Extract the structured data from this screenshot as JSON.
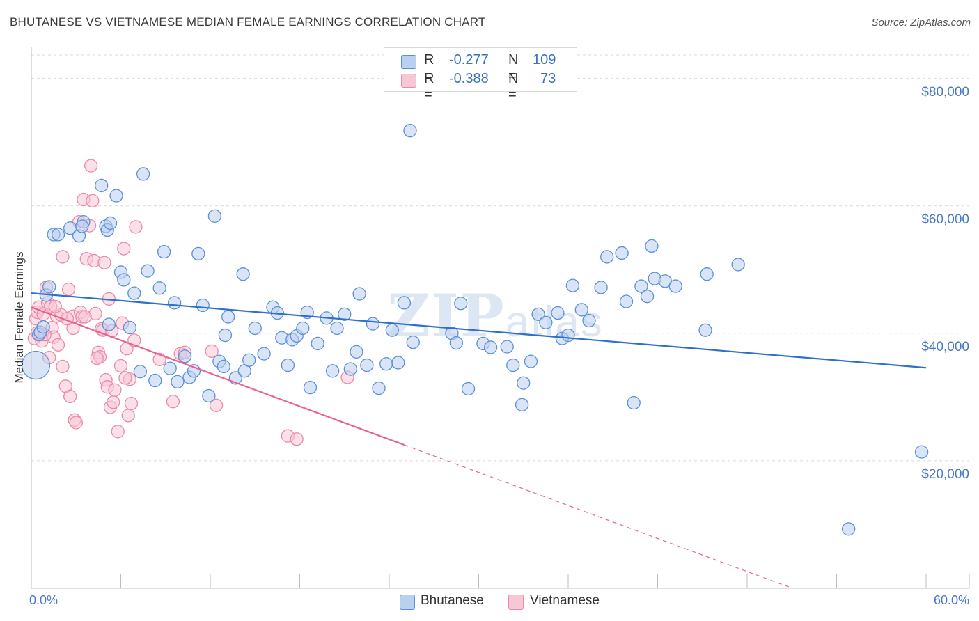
{
  "title": "BHUTANESE VS VIETNAMESE MEDIAN FEMALE EARNINGS CORRELATION CHART",
  "source": "Source: ZipAtlas.com",
  "watermark_zip": "ZIP",
  "watermark_atlas": "atlas",
  "colors": {
    "bhutanese_fill": "#b9d0f0",
    "bhutanese_stroke": "#5b8fd6",
    "bhutanese_line": "#2f6fce",
    "vietnamese_fill": "#f8c7d5",
    "vietnamese_stroke": "#e88aa8",
    "vietnamese_line": "#e8628e",
    "axis_text": "#4a78c8",
    "grid": "#d9d9d9"
  },
  "legend": {
    "row1": {
      "r_label": "R =",
      "r_value": "-0.277",
      "n_label": "N =",
      "n_value": "109"
    },
    "row2": {
      "r_label": "R =",
      "r_value": "-0.388",
      "n_label": "N =",
      "n_value": "73"
    }
  },
  "chart_data": {
    "type": "scatter",
    "title": "BHUTANESE VS VIETNAMESE MEDIAN FEMALE EARNINGS CORRELATION CHART",
    "xlabel": "",
    "ylabel": "Median Female Earnings",
    "xlim": [
      0,
      60
    ],
    "ylim": [
      0,
      84000
    ],
    "x_tick_labels": [
      "0.0%",
      "60.0%"
    ],
    "y_ticks": [
      20000,
      40000,
      60000,
      80000
    ],
    "y_tick_labels": [
      "$20,000",
      "$40,000",
      "$60,000",
      "$80,000"
    ],
    "grid": true,
    "legend_position": "bottom-center",
    "series": [
      {
        "name": "Bhutanese",
        "trend": {
          "x": [
            0,
            60
          ],
          "y": [
            46300,
            34600
          ]
        },
        "points": [
          [
            0.3,
            35000
          ],
          [
            0.5,
            39800
          ],
          [
            0.6,
            40200
          ],
          [
            0.8,
            41000
          ],
          [
            1.0,
            46000
          ],
          [
            1.2,
            47300
          ],
          [
            1.5,
            55500
          ],
          [
            1.8,
            55500
          ],
          [
            2.6,
            56500
          ],
          [
            3.2,
            55300
          ],
          [
            3.5,
            57500
          ],
          [
            3.4,
            56800
          ],
          [
            4.7,
            63200
          ],
          [
            5.0,
            56800
          ],
          [
            5.1,
            56200
          ],
          [
            5.3,
            57300
          ],
          [
            5.7,
            61600
          ],
          [
            5.2,
            41400
          ],
          [
            6.0,
            49600
          ],
          [
            6.2,
            48400
          ],
          [
            6.6,
            40900
          ],
          [
            6.9,
            46300
          ],
          [
            7.3,
            34000
          ],
          [
            7.5,
            65000
          ],
          [
            7.8,
            49800
          ],
          [
            8.3,
            32600
          ],
          [
            8.6,
            47100
          ],
          [
            8.9,
            52800
          ],
          [
            9.3,
            34500
          ],
          [
            9.6,
            44800
          ],
          [
            9.8,
            32400
          ],
          [
            10.3,
            36400
          ],
          [
            10.6,
            33100
          ],
          [
            10.9,
            34100
          ],
          [
            11.2,
            52500
          ],
          [
            11.5,
            44400
          ],
          [
            11.9,
            30200
          ],
          [
            12.3,
            58400
          ],
          [
            12.6,
            35600
          ],
          [
            12.9,
            34800
          ],
          [
            13.2,
            42600
          ],
          [
            13.7,
            33000
          ],
          [
            14.2,
            49300
          ],
          [
            14.3,
            34100
          ],
          [
            14.6,
            35800
          ],
          [
            15.0,
            40800
          ],
          [
            15.6,
            36800
          ],
          [
            16.2,
            44100
          ],
          [
            16.5,
            43200
          ],
          [
            16.8,
            39300
          ],
          [
            17.2,
            35000
          ],
          [
            17.5,
            39000
          ],
          [
            17.8,
            39600
          ],
          [
            18.2,
            40800
          ],
          [
            18.5,
            43300
          ],
          [
            18.7,
            31500
          ],
          [
            19.2,
            38400
          ],
          [
            19.8,
            42400
          ],
          [
            20.2,
            34100
          ],
          [
            20.5,
            40800
          ],
          [
            21.0,
            43000
          ],
          [
            21.4,
            34400
          ],
          [
            21.8,
            37100
          ],
          [
            22.0,
            46200
          ],
          [
            22.5,
            35000
          ],
          [
            22.9,
            41500
          ],
          [
            23.3,
            31400
          ],
          [
            23.8,
            35200
          ],
          [
            24.2,
            40500
          ],
          [
            24.6,
            35400
          ],
          [
            25.0,
            44800
          ],
          [
            25.6,
            38600
          ],
          [
            25.4,
            71800
          ],
          [
            28.2,
            40000
          ],
          [
            28.5,
            38500
          ],
          [
            28.8,
            44700
          ],
          [
            29.3,
            31300
          ],
          [
            30.3,
            38400
          ],
          [
            30.8,
            37800
          ],
          [
            31.9,
            37900
          ],
          [
            32.3,
            35000
          ],
          [
            32.9,
            28800
          ],
          [
            33.0,
            32200
          ],
          [
            33.5,
            35600
          ],
          [
            34.0,
            43000
          ],
          [
            34.5,
            41700
          ],
          [
            35.3,
            43200
          ],
          [
            35.6,
            39200
          ],
          [
            36.0,
            39700
          ],
          [
            36.3,
            47500
          ],
          [
            36.9,
            43700
          ],
          [
            37.4,
            42000
          ],
          [
            38.2,
            47200
          ],
          [
            38.6,
            52000
          ],
          [
            39.6,
            52600
          ],
          [
            39.9,
            45000
          ],
          [
            40.4,
            29100
          ],
          [
            40.9,
            47400
          ],
          [
            41.3,
            45800
          ],
          [
            41.6,
            53700
          ],
          [
            41.8,
            48600
          ],
          [
            42.5,
            48200
          ],
          [
            43.2,
            47400
          ],
          [
            45.3,
            49300
          ],
          [
            45.2,
            40500
          ],
          [
            47.4,
            50800
          ],
          [
            59.7,
            21400
          ],
          [
            54.8,
            9300
          ],
          [
            13.0,
            39700
          ]
        ]
      },
      {
        "name": "Vietnamese",
        "trend": {
          "x": [
            0,
            25
          ],
          "y": [
            44100,
            22500
          ]
        },
        "points": [
          [
            0.2,
            39200
          ],
          [
            0.3,
            42300
          ],
          [
            0.4,
            43300
          ],
          [
            0.5,
            44100
          ],
          [
            0.6,
            39800
          ],
          [
            0.7,
            38800
          ],
          [
            0.8,
            43000
          ],
          [
            1.0,
            47200
          ],
          [
            1.1,
            44800
          ],
          [
            1.2,
            36200
          ],
          [
            1.3,
            44200
          ],
          [
            1.4,
            40900
          ],
          [
            1.5,
            39400
          ],
          [
            1.7,
            42700
          ],
          [
            1.8,
            38200
          ],
          [
            2.0,
            42900
          ],
          [
            2.1,
            52000
          ],
          [
            2.1,
            34800
          ],
          [
            2.3,
            31700
          ],
          [
            2.5,
            46900
          ],
          [
            2.6,
            30100
          ],
          [
            2.8,
            42700
          ],
          [
            2.9,
            26400
          ],
          [
            2.8,
            40800
          ],
          [
            3.0,
            26000
          ],
          [
            3.2,
            57500
          ],
          [
            3.3,
            43300
          ],
          [
            3.4,
            42600
          ],
          [
            3.5,
            61000
          ],
          [
            3.7,
            51700
          ],
          [
            3.9,
            56900
          ],
          [
            4.0,
            66300
          ],
          [
            4.1,
            60800
          ],
          [
            4.2,
            51400
          ],
          [
            4.3,
            43100
          ],
          [
            4.5,
            37000
          ],
          [
            4.6,
            36300
          ],
          [
            4.7,
            40700
          ],
          [
            4.8,
            40500
          ],
          [
            4.9,
            51100
          ],
          [
            5.0,
            32700
          ],
          [
            5.1,
            31600
          ],
          [
            5.2,
            45400
          ],
          [
            5.3,
            28400
          ],
          [
            5.4,
            40400
          ],
          [
            5.5,
            29200
          ],
          [
            5.6,
            31100
          ],
          [
            5.8,
            24600
          ],
          [
            6.0,
            34900
          ],
          [
            6.1,
            41600
          ],
          [
            6.2,
            53300
          ],
          [
            6.4,
            37600
          ],
          [
            6.5,
            27100
          ],
          [
            6.6,
            32800
          ],
          [
            6.7,
            29000
          ],
          [
            6.9,
            38900
          ],
          [
            7.0,
            56700
          ],
          [
            8.6,
            35900
          ],
          [
            9.5,
            29300
          ],
          [
            10.0,
            36800
          ],
          [
            10.3,
            37000
          ],
          [
            12.1,
            37200
          ],
          [
            12.4,
            28700
          ],
          [
            17.2,
            23900
          ],
          [
            17.8,
            23400
          ],
          [
            21.2,
            33100
          ],
          [
            0.4,
            40100
          ],
          [
            0.9,
            39800
          ],
          [
            1.6,
            44200
          ],
          [
            2.4,
            42300
          ],
          [
            3.6,
            42600
          ],
          [
            4.4,
            36100
          ],
          [
            6.3,
            33000
          ]
        ]
      }
    ]
  }
}
